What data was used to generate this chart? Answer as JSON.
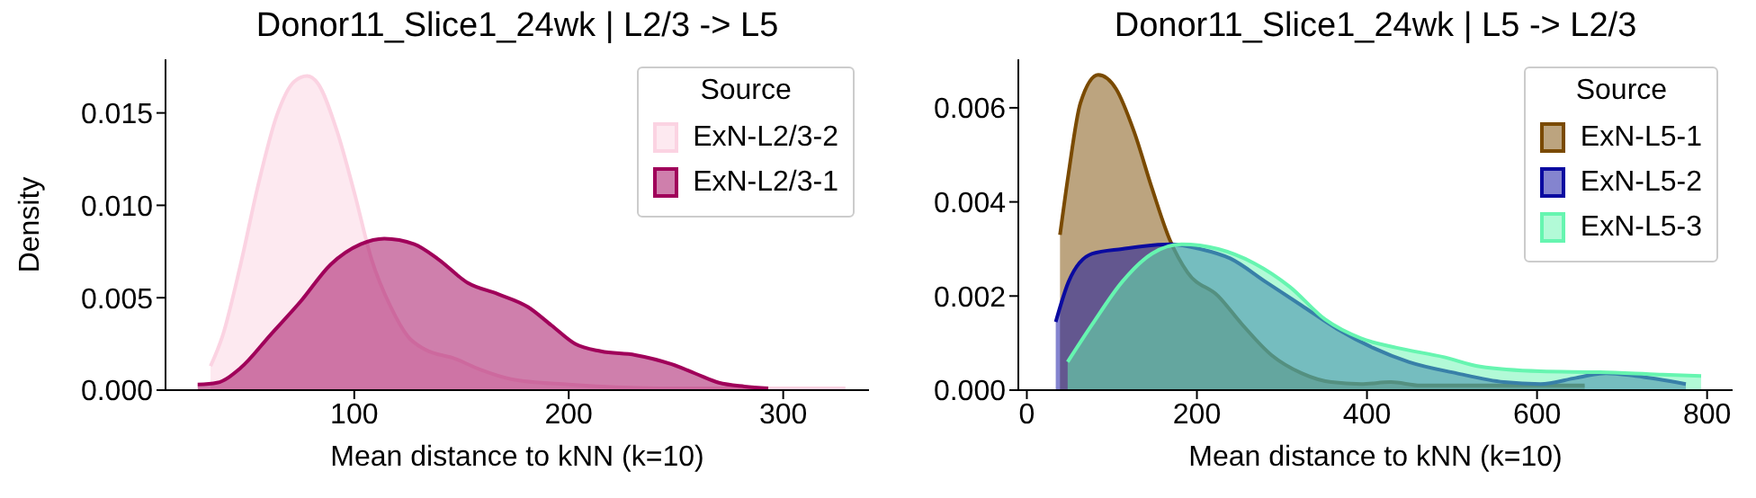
{
  "chart_data": [
    {
      "type": "area",
      "title": "Donor11_Slice1_24wk | L2/3 -> L5",
      "xlabel": "Mean distance to kNN (k=10)",
      "ylabel": "Density",
      "legend_title": "Source",
      "legend": "top right",
      "grid": false,
      "xlim": [
        12,
        340
      ],
      "xticks": [
        100,
        200,
        300
      ],
      "ylim": [
        0,
        0.0179
      ],
      "yticks": [
        {
          "value": 0,
          "label": "0.000"
        },
        {
          "value": 0.005,
          "label": "0.005"
        },
        {
          "value": 0.01,
          "label": "0.010"
        },
        {
          "value": 0.015,
          "label": "0.015"
        }
      ],
      "series": [
        {
          "name": "ExN-L2/3-2",
          "color": "#fbd3e2",
          "x": [
            33,
            38.5,
            47,
            55,
            64,
            72,
            78,
            83,
            92,
            100,
            108,
            117,
            125,
            133,
            147,
            159,
            173,
            200,
            242,
            298,
            329
          ],
          "values": [
            0.0013,
            0.0029,
            0.0068,
            0.011,
            0.0149,
            0.0167,
            0.017,
            0.0166,
            0.014,
            0.0107,
            0.0071,
            0.0045,
            0.0029,
            0.0022,
            0.0017,
            0.0011,
            0.0006,
            0.0003,
            0.0001,
            0.0001,
            0.0001
          ]
        },
        {
          "name": "ExN-L2/3-1",
          "color": "#a0005a",
          "x": [
            27,
            36,
            47,
            61,
            75,
            89,
            103,
            114,
            128,
            139,
            153,
            167,
            181,
            192,
            203,
            215,
            231,
            248,
            259,
            270,
            282,
            293
          ],
          "values": [
            0.0003,
            0.0004,
            0.0012,
            0.003,
            0.0048,
            0.0068,
            0.0079,
            0.0082,
            0.0079,
            0.0071,
            0.0058,
            0.0052,
            0.0045,
            0.0035,
            0.0025,
            0.0021,
            0.0019,
            0.0014,
            0.0009,
            0.0004,
            0.0002,
            0.0001
          ]
        }
      ]
    },
    {
      "type": "area",
      "title": "Donor11_Slice1_24wk | L5 -> L2/3",
      "xlabel": "Mean distance to kNN (k=10)",
      "legend_title": "Source",
      "legend": "top right",
      "grid": false,
      "xlim": [
        -10,
        830
      ],
      "xticks": [
        0,
        200,
        400,
        600,
        800
      ],
      "ylim": [
        0,
        0.00703
      ],
      "yticks": [
        {
          "value": 0,
          "label": "0.000"
        },
        {
          "value": 0.002,
          "label": "0.002"
        },
        {
          "value": 0.004,
          "label": "0.004"
        },
        {
          "value": 0.006,
          "label": "0.006"
        }
      ],
      "series": [
        {
          "name": "ExN-L5-1",
          "color": "#7a4a00",
          "x": [
            39,
            49,
            63,
            84,
            105,
            126,
            147,
            168,
            189,
            225,
            253,
            288,
            323,
            358,
            393,
            428,
            463,
            533,
            656
          ],
          "values": [
            0.0033,
            0.0046,
            0.0061,
            0.0067,
            0.0064,
            0.0055,
            0.0043,
            0.0032,
            0.0025,
            0.002,
            0.0014,
            0.00074,
            0.00036,
            0.00017,
            0.00013,
            0.00017,
            0.0001,
            0.0001,
            0.0001
          ]
        },
        {
          "name": "ExN-L5-2",
          "color": "#0a0aa0",
          "x": [
            34,
            49,
            77,
            112,
            168,
            204,
            239,
            281,
            323,
            365,
            407,
            449,
            505,
            561,
            604,
            646,
            681,
            716,
            775
          ],
          "values": [
            0.00145,
            0.0023,
            0.0029,
            0.003,
            0.0031,
            0.003,
            0.0028,
            0.0023,
            0.0018,
            0.0013,
            0.0009,
            0.0006,
            0.00036,
            0.00017,
            0.00013,
            0.00026,
            0.00036,
            0.0003,
            0.00013
          ]
        },
        {
          "name": "ExN-L5-3",
          "color": "#66f5b0",
          "x": [
            48,
            77,
            112,
            147,
            182,
            225,
            267,
            309,
            351,
            393,
            435,
            491,
            533,
            604,
            674,
            744,
            793
          ],
          "values": [
            0.0006,
            0.0014,
            0.0023,
            0.0029,
            0.0031,
            0.003,
            0.0027,
            0.0022,
            0.0015,
            0.0011,
            0.0009,
            0.0007,
            0.0005,
            0.0004,
            0.00038,
            0.00033,
            0.0003
          ]
        }
      ]
    }
  ]
}
